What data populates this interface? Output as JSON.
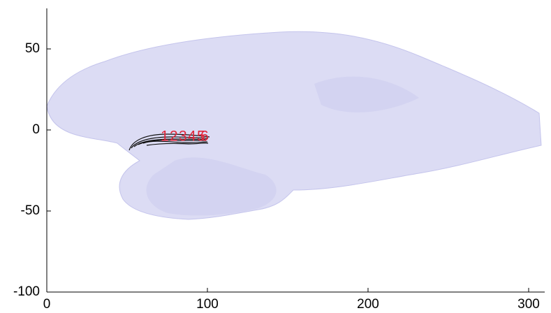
{
  "chart_data": {
    "type": "surface",
    "xlim": [
      0,
      310
    ],
    "ylim": [
      -100,
      75
    ],
    "xticks": [
      0,
      100,
      200,
      300
    ],
    "yticks": [
      -100,
      -50,
      0,
      50
    ],
    "annotations": [
      "1",
      "2",
      "3",
      "4",
      "5",
      "6"
    ],
    "color": "#dcdcf4"
  }
}
